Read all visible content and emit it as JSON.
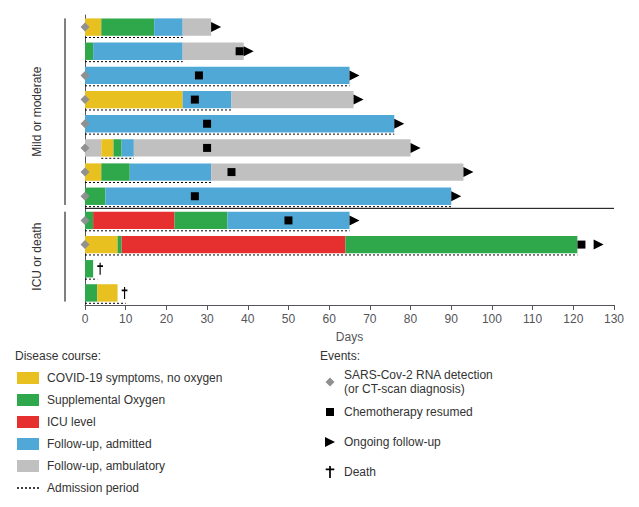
{
  "chart_data": {
    "type": "swimmer",
    "orientation": "horizontal",
    "xlabel": "Days",
    "xlim": [
      0,
      130
    ],
    "xticks": [
      0,
      10,
      20,
      30,
      40,
      50,
      60,
      70,
      80,
      90,
      100,
      110,
      120,
      130
    ],
    "tick_labels": "x",
    "grid": false,
    "legend": "bottom",
    "series_title": "Disease course:",
    "series": [
      {
        "name": "COVID-19 symptoms, no oxygen",
        "color": "#E8C020"
      },
      {
        "name": "Supplemental Oxygen",
        "color": "#2EA84B"
      },
      {
        "name": "ICU level",
        "color": "#E63030"
      },
      {
        "name": "Follow-up, admitted",
        "color": "#4FA8D5"
      },
      {
        "name": "Follow-up, ambulatory",
        "color": "#C0C0C0"
      },
      {
        "name": "Admission period",
        "line_style": "dotted",
        "color": "#000000",
        "values": [
          [
            0,
            24
          ],
          [
            0,
            24
          ],
          [
            0,
            65
          ],
          [
            0,
            36
          ],
          [
            0,
            76
          ],
          [
            4,
            12
          ],
          [
            0,
            31
          ],
          [
            0,
            90
          ],
          [
            0,
            65
          ],
          [
            0,
            121
          ],
          [
            0,
            3
          ],
          [
            0,
            10
          ]
        ]
      }
    ],
    "events_title": "Events:",
    "events": [
      {
        "name": "SARS-Cov-2 RNA detection\n(or CT-scan diagnosis)",
        "marker": "diamond",
        "color": "#909090",
        "values": [
          0,
          null,
          0,
          0,
          0,
          0,
          0,
          0,
          0,
          0,
          null,
          null
        ]
      },
      {
        "name": "Chemotherapy resumed",
        "marker": "square",
        "color": "#000000",
        "values": [
          null,
          38,
          28,
          27,
          30,
          30,
          36,
          27,
          50,
          122,
          null,
          null
        ]
      },
      {
        "name": "Ongoing follow-up",
        "marker": "arrow",
        "color": "#000000",
        "values": [
          31,
          39,
          65,
          66,
          76,
          80,
          93,
          90,
          65,
          125,
          null,
          null
        ]
      },
      {
        "name": "Death",
        "marker": "dagger",
        "color": "#000000",
        "values": [
          null,
          null,
          null,
          null,
          null,
          null,
          null,
          null,
          null,
          null,
          2,
          8
        ]
      }
    ],
    "patients": [
      {
        "group": "Mild or moderate",
        "segments": [
          {
            "start": 0,
            "width": 4,
            "color": "#E8C020"
          },
          {
            "start": 4,
            "width": 13,
            "color": "#2EA84B"
          },
          {
            "start": 17,
            "width": 7,
            "color": "#4FA8D5"
          },
          {
            "start": 24,
            "width": 7,
            "color": "#C0C0C0"
          }
        ]
      },
      {
        "group": "Mild or moderate",
        "segments": [
          {
            "start": 0,
            "width": 2,
            "color": "#2EA84B"
          },
          {
            "start": 2,
            "width": 22,
            "color": "#4FA8D5"
          },
          {
            "start": 24,
            "width": 15,
            "color": "#C0C0C0"
          }
        ]
      },
      {
        "group": "Mild or moderate",
        "segments": [
          {
            "start": 0,
            "width": 65,
            "color": "#4FA8D5"
          }
        ]
      },
      {
        "group": "Mild or moderate",
        "segments": [
          {
            "start": 0,
            "width": 24,
            "color": "#E8C020"
          },
          {
            "start": 24,
            "width": 12,
            "color": "#4FA8D5"
          },
          {
            "start": 36,
            "width": 30,
            "color": "#C0C0C0"
          }
        ]
      },
      {
        "group": "Mild or moderate",
        "segments": [
          {
            "start": 0,
            "width": 76,
            "color": "#4FA8D5"
          }
        ]
      },
      {
        "group": "Mild or moderate",
        "segments": [
          {
            "start": 0,
            "width": 4,
            "color": "#C0C0C0"
          },
          {
            "start": 4,
            "width": 3,
            "color": "#E8C020"
          },
          {
            "start": 7,
            "width": 2,
            "color": "#2EA84B"
          },
          {
            "start": 9,
            "width": 3,
            "color": "#4FA8D5"
          },
          {
            "start": 12,
            "width": 68,
            "color": "#C0C0C0"
          }
        ]
      },
      {
        "group": "Mild or moderate",
        "segments": [
          {
            "start": 0,
            "width": 4,
            "color": "#E8C020"
          },
          {
            "start": 4,
            "width": 7,
            "color": "#2EA84B"
          },
          {
            "start": 11,
            "width": 20,
            "color": "#4FA8D5"
          },
          {
            "start": 31,
            "width": 62,
            "color": "#C0C0C0"
          }
        ]
      },
      {
        "group": "Mild or moderate",
        "segments": [
          {
            "start": 0,
            "width": 5,
            "color": "#2EA84B"
          },
          {
            "start": 5,
            "width": 85,
            "color": "#4FA8D5"
          }
        ]
      },
      {
        "group": "ICU or death",
        "segments": [
          {
            "start": 0,
            "width": 2,
            "color": "#2EA84B"
          },
          {
            "start": 2,
            "width": 20,
            "color": "#E63030"
          },
          {
            "start": 22,
            "width": 13,
            "color": "#2EA84B"
          },
          {
            "start": 35,
            "width": 30,
            "color": "#4FA8D5"
          }
        ]
      },
      {
        "group": "ICU or death",
        "segments": [
          {
            "start": 0,
            "width": 8,
            "color": "#E8C020"
          },
          {
            "start": 8,
            "width": 1,
            "color": "#2EA84B"
          },
          {
            "start": 9,
            "width": 55,
            "color": "#E63030"
          },
          {
            "start": 64,
            "width": 57,
            "color": "#2EA84B"
          }
        ]
      },
      {
        "group": "ICU or death",
        "segments": [
          {
            "start": 0,
            "width": 2,
            "color": "#2EA84B"
          }
        ]
      },
      {
        "group": "ICU or death",
        "segments": [
          {
            "start": 0,
            "width": 3,
            "color": "#2EA84B"
          },
          {
            "start": 3,
            "width": 5,
            "color": "#E8C020"
          }
        ]
      }
    ]
  }
}
